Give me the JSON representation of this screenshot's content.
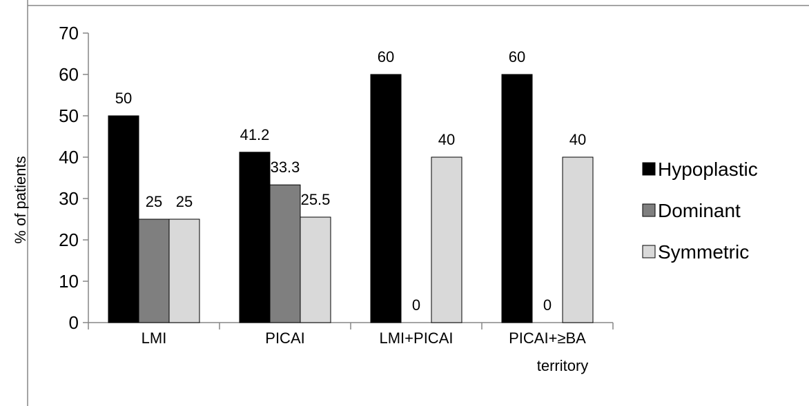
{
  "chart_data": {
    "type": "bar",
    "categories": [
      "LMI",
      "PICAI",
      "LMI+PICAI",
      "PICAI+≥BA territory"
    ],
    "category_lines": [
      [
        "LMI"
      ],
      [
        "PICAI"
      ],
      [
        "LMI+PICAI"
      ],
      [
        "PICAI+≥BA",
        "territory"
      ]
    ],
    "series": [
      {
        "name": "Hypoplastic",
        "color": "#000000",
        "values": [
          50,
          41.2,
          60,
          60
        ],
        "labels": [
          "50",
          "41.2",
          "60",
          "60"
        ]
      },
      {
        "name": "Dominant",
        "color": "#7f7f7f",
        "values": [
          25,
          33.3,
          0,
          0
        ],
        "labels": [
          "25",
          "33.3",
          "0",
          "0"
        ]
      },
      {
        "name": "Symmetric",
        "color": "#d9d9d9",
        "values": [
          25,
          25.5,
          40,
          40
        ],
        "labels": [
          "25",
          "25.5",
          "40",
          "40"
        ]
      }
    ],
    "ylabel": "% of patients",
    "ylim": [
      0,
      70
    ],
    "yticks": [
      "0",
      "10",
      "20",
      "30",
      "40",
      "50",
      "60",
      "70"
    ],
    "legend_position": "right",
    "grid": false
  }
}
